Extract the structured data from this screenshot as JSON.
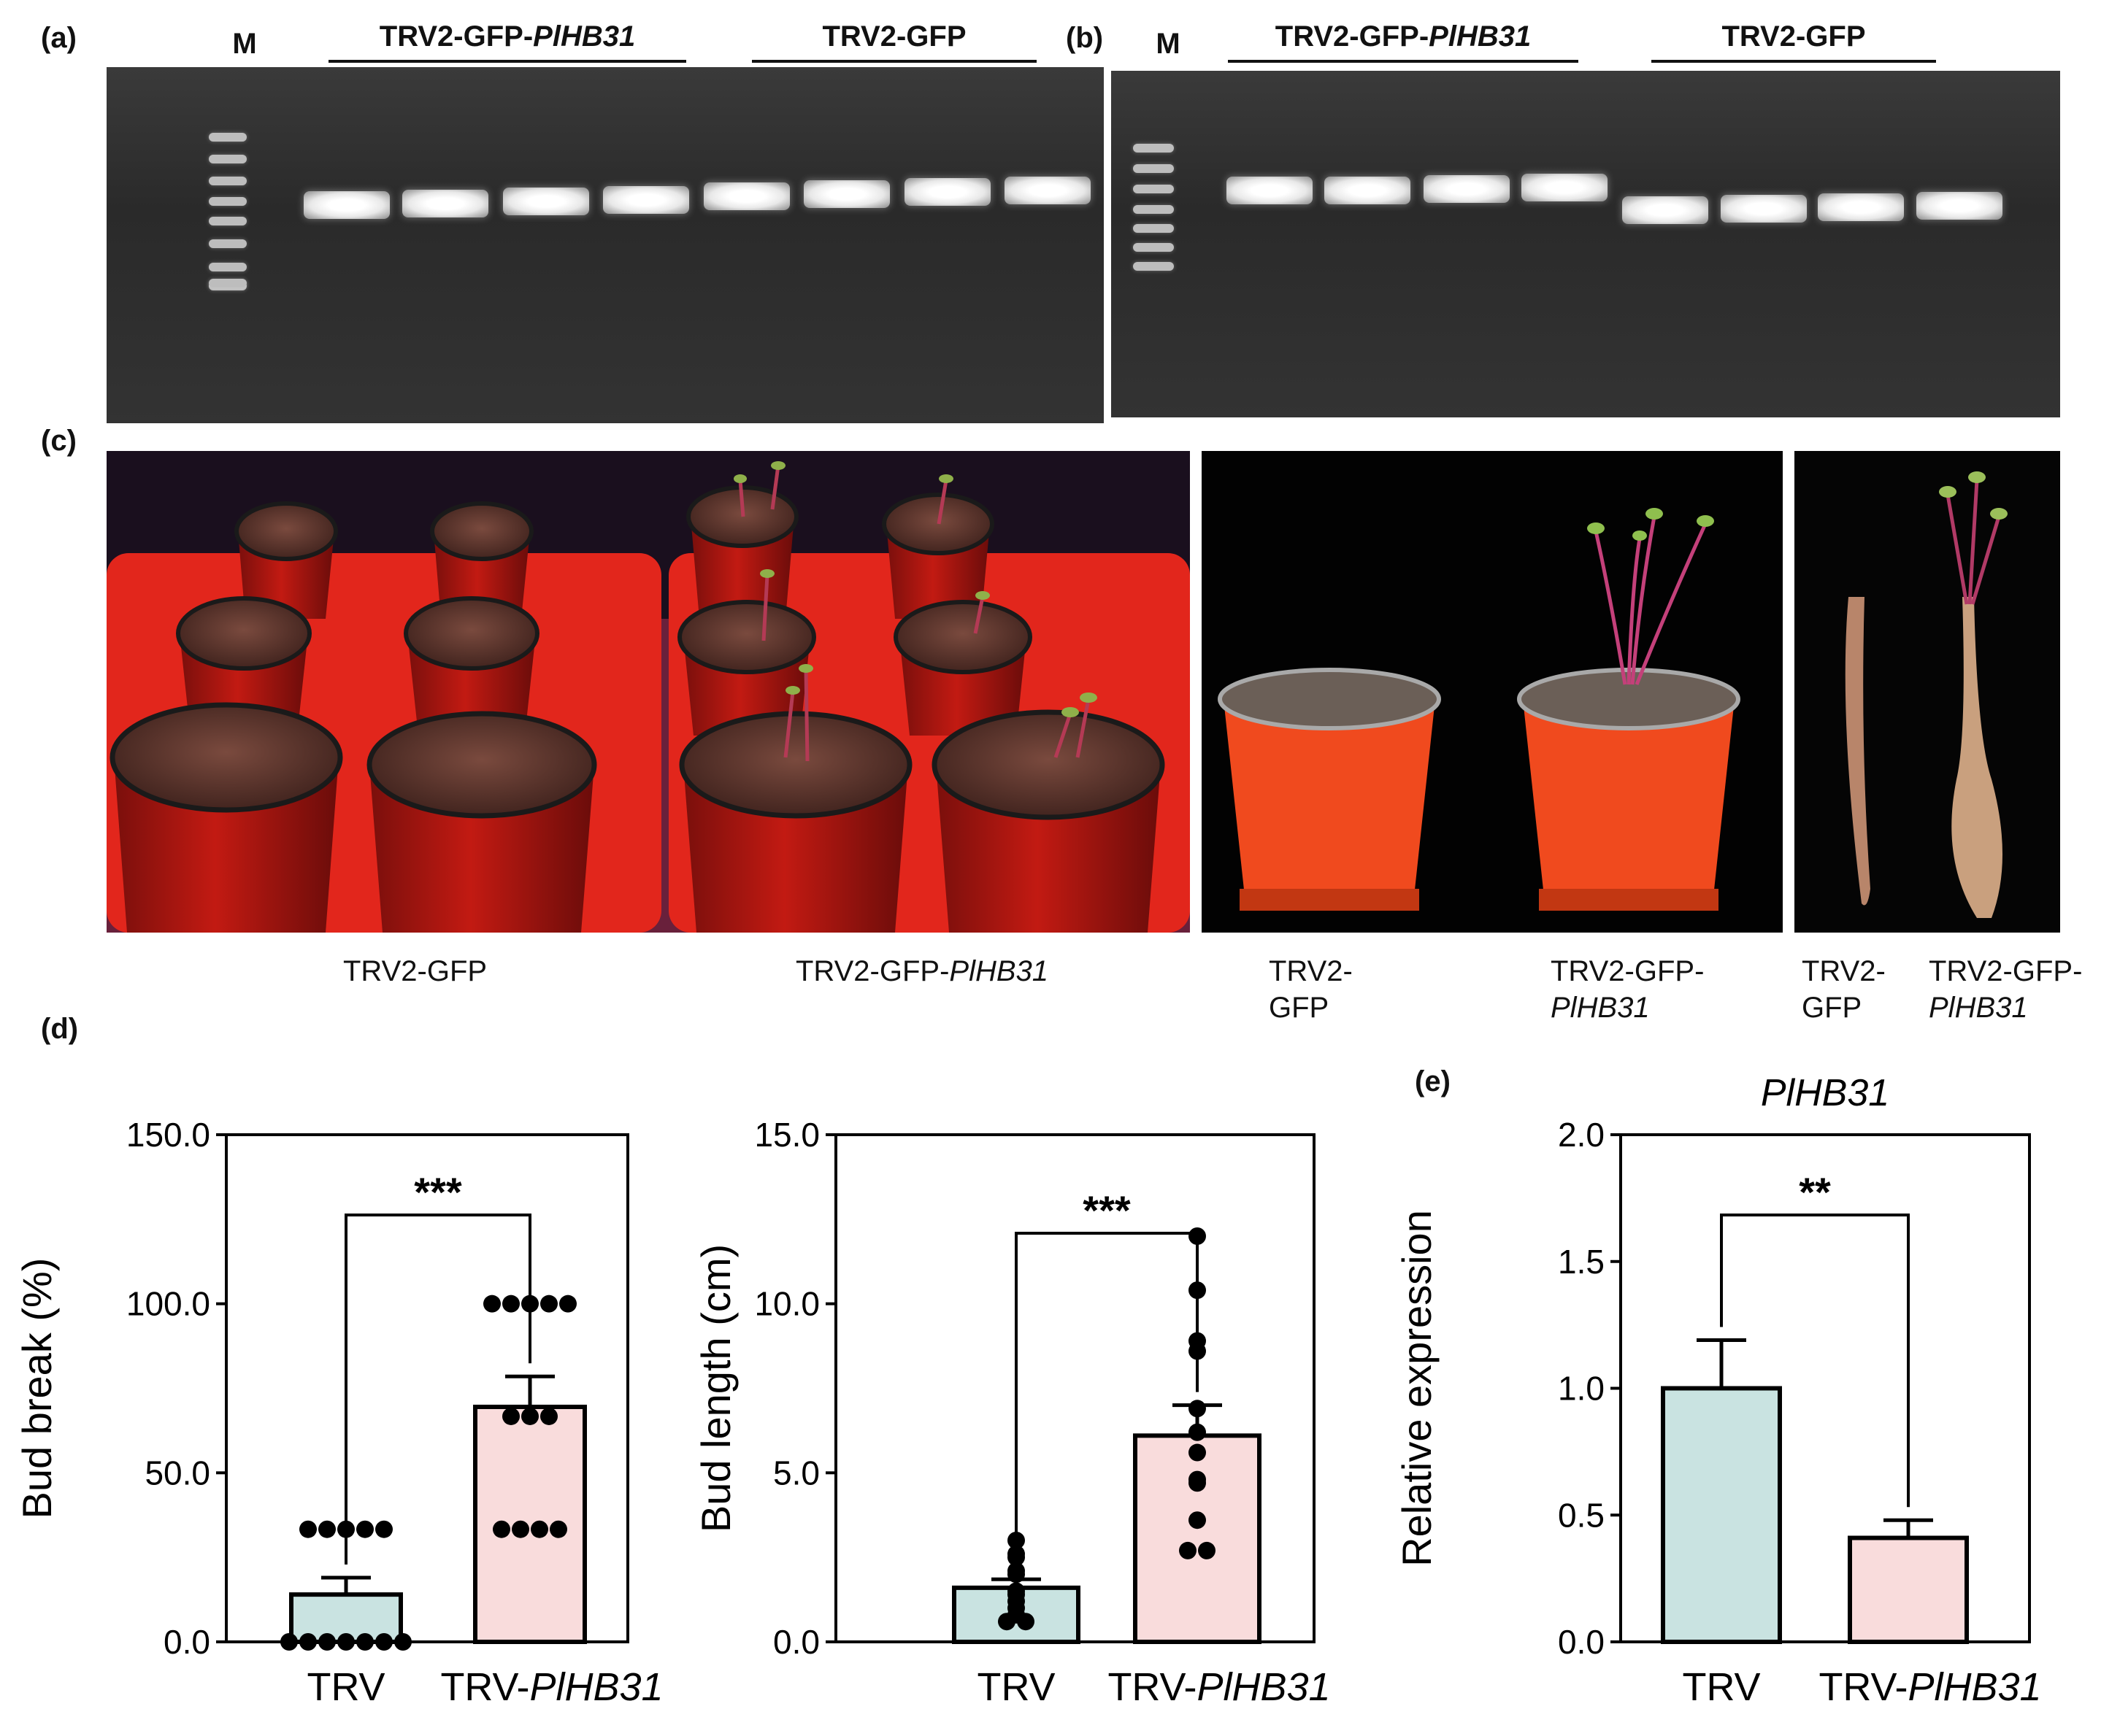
{
  "panels": {
    "a": {
      "label": "(a)",
      "marker": "M",
      "group1": "TRV2-GFP-",
      "group1_gene": "PlHB31",
      "group2": "TRV2-GFP"
    },
    "b": {
      "label": "(b)",
      "marker": "M",
      "group1": "TRV2-GFP-",
      "group1_gene": "PlHB31",
      "group2": "TRV2-GFP"
    },
    "c": {
      "label": "(c)",
      "caption1": "TRV2-GFP",
      "caption2_prefix": "TRV2-GFP-",
      "caption2_gene": "PlHB31",
      "caption3_line1": "TRV2-",
      "caption3_line2": "GFP",
      "caption4_line1": "TRV2-GFP-",
      "caption4_line2": "PlHB31",
      "caption5_line1": "TRV2-",
      "caption5_line2": "GFP",
      "caption6_line1": "TRV2-GFP-",
      "caption6_line2": "PlHB31"
    },
    "d": {
      "label": "(d)"
    },
    "e": {
      "label": "(e)"
    }
  },
  "colors": {
    "trv_bar": "#c9e3e1",
    "plhb31_bar": "#f9dcdc",
    "axis": "#000000",
    "gel_band": "#ffffff"
  },
  "chart_data": [
    {
      "type": "bar",
      "ylabel": "Bud break (%)",
      "ylim": [
        0,
        150
      ],
      "yticks": [
        "0.0",
        "50.0",
        "100.0",
        "150.0"
      ],
      "categories": [
        "TRV",
        "TRV-PlHB31"
      ],
      "cat_labels": [
        {
          "plain": "TRV",
          "italic": ""
        },
        {
          "plain": "TRV-",
          "italic": "PlHB31"
        }
      ],
      "values": [
        14,
        69.5
      ],
      "errors": [
        5,
        9
      ],
      "points": [
        [
          33.3,
          33.3,
          33.3,
          33.3,
          33.3,
          0,
          0,
          0,
          0,
          0,
          0,
          0
        ],
        [
          100,
          100,
          100,
          100,
          100,
          66.7,
          66.7,
          66.7,
          33.3,
          33.3,
          33.3,
          33.3
        ]
      ],
      "significance": "***"
    },
    {
      "type": "bar",
      "ylabel": "Bud length (cm)",
      "ylim": [
        0,
        15
      ],
      "yticks": [
        "0.0",
        "5.0",
        "10.0",
        "15.0"
      ],
      "categories": [
        "TRV",
        "TRV-PlHB31"
      ],
      "cat_labels": [
        {
          "plain": "TRV",
          "italic": ""
        },
        {
          "plain": "TRV-",
          "italic": "PlHB31"
        }
      ],
      "values": [
        1.6,
        6.1
      ],
      "errors": [
        0.25,
        0.9
      ],
      "points": [
        [
          3.0,
          2.6,
          2.5,
          2.1,
          2.0,
          1.5,
          1.4,
          1.2,
          1.0,
          0.8,
          0.6,
          0.6
        ],
        [
          12.0,
          10.4,
          8.9,
          8.6,
          6.9,
          6.2,
          5.6,
          4.8,
          4.7,
          3.6,
          2.7,
          2.7
        ]
      ],
      "significance": "***"
    },
    {
      "type": "bar",
      "title": "PlHB31",
      "ylabel": "Relative expression",
      "ylim": [
        0,
        2.0
      ],
      "yticks": [
        "0.0",
        "0.5",
        "1.0",
        "1.5",
        "2.0"
      ],
      "categories": [
        "TRV",
        "TRV-PlHB31"
      ],
      "cat_labels": [
        {
          "plain": "TRV",
          "italic": ""
        },
        {
          "plain": "TRV-",
          "italic": "PlHB31"
        }
      ],
      "values": [
        1.0,
        0.41
      ],
      "errors": [
        0.19,
        0.07
      ],
      "points": [
        [],
        []
      ],
      "significance": "**"
    }
  ]
}
